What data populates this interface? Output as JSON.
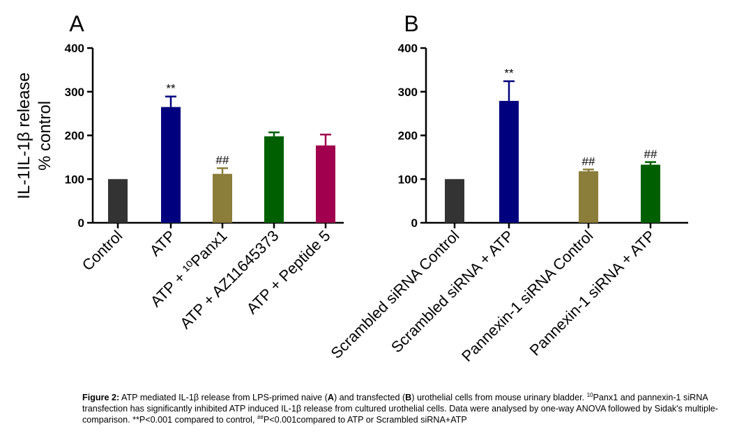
{
  "chart_data": [
    {
      "type": "bar",
      "panel_label": "A",
      "ylabel_line1": "IL-1IL-1β release",
      "ylabel_line2": "% control",
      "ylim": [
        0,
        400
      ],
      "yticks": [
        "0",
        "100",
        "200",
        "300",
        "400"
      ],
      "categories": [
        "Control",
        "ATP",
        "ATP + ¹⁰Panx1",
        "ATP + AZ11645373",
        "ATP + Peptide 5"
      ],
      "values": [
        100,
        265,
        112,
        198,
        177
      ],
      "errors": [
        0,
        24,
        13,
        9,
        25
      ],
      "annotations": [
        "",
        "**",
        "##",
        "",
        ""
      ],
      "colors": [
        "#333333",
        "#00007f",
        "#8b7d3a",
        "#005f00",
        "#a0004d"
      ]
    },
    {
      "type": "bar",
      "panel_label": "B",
      "ylim": [
        0,
        400
      ],
      "yticks": [
        "0",
        "100",
        "200",
        "300",
        "400"
      ],
      "categories": [
        "Scrambled siRNA Control",
        "Scrambled siRNA + ATP",
        "Pannexin-1 siRNA Control",
        "Pannexin-1 siRNA + ATP"
      ],
      "values": [
        100,
        279,
        118,
        133
      ],
      "errors": [
        0,
        45,
        4,
        6
      ],
      "annotations": [
        "",
        "**",
        "##",
        "##"
      ],
      "colors": [
        "#333333",
        "#00007f",
        "#8b7d3a",
        "#005f00"
      ]
    }
  ],
  "caption": {
    "title": "Figure 2:",
    "text1": " ATP mediated IL-1β release from LPS-primed naive (",
    "a": "A",
    "text2": ") and transfected (",
    "b": "B",
    "text3": ") urothelial cells from mouse urinary bladder. ",
    "sup1": "10",
    "text4": "Panx1 and pannexin-1 siRNA transfection has significantly inhibited ATP induced IL-1β release from cultured urothelial cells. Data were analysed by one-way ANOVA followed by Sidak's multiple-comparison. **P<0.001 compared to control, ",
    "sup2": "##",
    "text5": "P<0.001compared to ATP or Scrambled siRNA+ATP"
  }
}
